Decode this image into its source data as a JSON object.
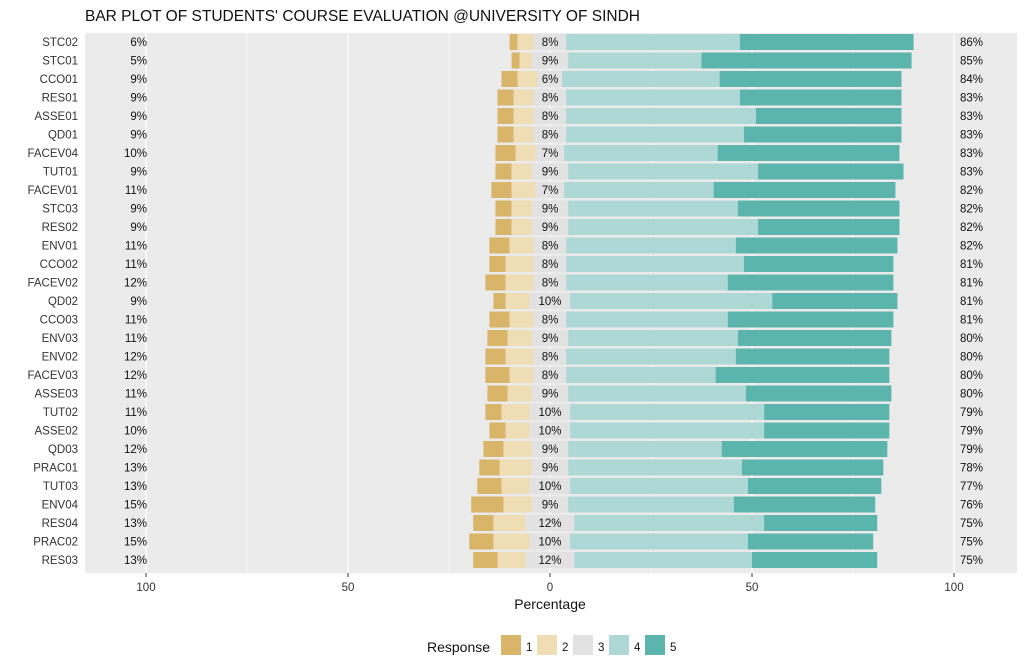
{
  "chart_data": {
    "type": "bar",
    "subtype": "diverging-stacked-horizontal",
    "title": "BAR PLOT OF STUDENTS' COURSE EVALUATION @UNIVERSITY OF SINDH",
    "xlabel": "Percentage",
    "ylabel": "",
    "xlim": [
      -100,
      100
    ],
    "x_ticks": [
      -100,
      -50,
      0,
      50,
      100
    ],
    "x_tick_labels": [
      "100",
      "50",
      "0",
      "50",
      "100"
    ],
    "grid": true,
    "legend": {
      "title": "Response",
      "placement": "bottom",
      "entries": [
        "1",
        "2",
        "3",
        "4",
        "5"
      ],
      "colors": [
        "#D9B56A",
        "#EFDDB6",
        "#E2E2E2",
        "#ADD8D6",
        "#5CB5AC"
      ]
    },
    "panel_background": "#EBEBEB",
    "categories": [
      "STC02",
      "STC01",
      "CCO01",
      "RES01",
      "ASSE01",
      "QD01",
      "FACEV04",
      "TUT01",
      "FACEV01",
      "STC03",
      "RES02",
      "ENV01",
      "CCO02",
      "FACEV02",
      "QD02",
      "CCO03",
      "ENV03",
      "ENV02",
      "FACEV03",
      "ASSE03",
      "TUT02",
      "ASSE02",
      "QD03",
      "PRAC01",
      "TUT03",
      "ENV04",
      "RES04",
      "PRAC02",
      "RES03"
    ],
    "series": [
      {
        "name": "1",
        "values": [
          2,
          2,
          4,
          4,
          4,
          4,
          5,
          4,
          5,
          4,
          4,
          5,
          4,
          5,
          3,
          5,
          5,
          5,
          6,
          5,
          4,
          4,
          5,
          5,
          6,
          8,
          5,
          6,
          6
        ]
      },
      {
        "name": "2",
        "values": [
          4,
          3,
          5,
          5,
          5,
          5,
          5,
          5,
          6,
          5,
          5,
          6,
          7,
          7,
          6,
          6,
          6,
          7,
          6,
          6,
          7,
          6,
          7,
          8,
          7,
          7,
          8,
          9,
          7
        ]
      },
      {
        "name": "3",
        "values": [
          8,
          9,
          6,
          8,
          8,
          8,
          7,
          9,
          7,
          9,
          9,
          8,
          8,
          8,
          10,
          8,
          9,
          8,
          8,
          9,
          10,
          10,
          9,
          9,
          10,
          9,
          12,
          10,
          12
        ]
      },
      {
        "name": "4",
        "values": [
          43,
          33,
          39,
          43,
          47,
          44,
          38,
          47,
          37,
          42,
          47,
          42,
          44,
          40,
          50,
          40,
          42,
          42,
          37,
          44,
          48,
          48,
          38,
          43,
          44,
          41,
          47,
          44,
          44
        ]
      },
      {
        "name": "5",
        "values": [
          43,
          52,
          45,
          40,
          36,
          39,
          45,
          36,
          45,
          40,
          35,
          40,
          37,
          41,
          31,
          41,
          38,
          38,
          43,
          36,
          31,
          31,
          41,
          35,
          33,
          35,
          28,
          31,
          31
        ]
      }
    ],
    "low_labels": [
      "6%",
      "5%",
      "9%",
      "9%",
      "9%",
      "9%",
      "10%",
      "9%",
      "11%",
      "9%",
      "9%",
      "11%",
      "11%",
      "12%",
      "9%",
      "11%",
      "11%",
      "12%",
      "12%",
      "11%",
      "11%",
      "10%",
      "12%",
      "13%",
      "13%",
      "15%",
      "13%",
      "15%",
      "13%"
    ],
    "neutral_labels": [
      "8%",
      "9%",
      "6%",
      "8%",
      "8%",
      "8%",
      "7%",
      "9%",
      "7%",
      "9%",
      "9%",
      "8%",
      "8%",
      "8%",
      "10%",
      "8%",
      "9%",
      "8%",
      "8%",
      "9%",
      "10%",
      "10%",
      "9%",
      "9%",
      "10%",
      "9%",
      "12%",
      "10%",
      "12%"
    ],
    "high_labels": [
      "86%",
      "85%",
      "84%",
      "83%",
      "83%",
      "83%",
      "83%",
      "83%",
      "82%",
      "82%",
      "82%",
      "82%",
      "81%",
      "81%",
      "81%",
      "81%",
      "80%",
      "80%",
      "80%",
      "80%",
      "79%",
      "79%",
      "79%",
      "78%",
      "77%",
      "76%",
      "75%",
      "75%",
      "75%"
    ]
  }
}
